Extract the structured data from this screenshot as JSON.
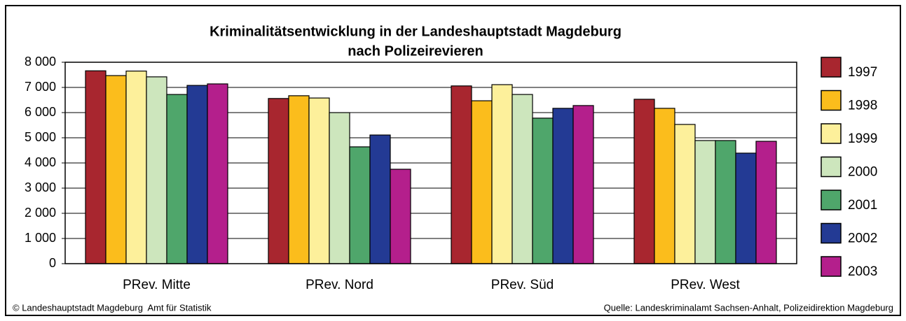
{
  "chart_data": {
    "type": "bar",
    "title": "Kriminalitätsentwicklung in der Landeshauptstadt Magdeburg",
    "subtitle": "nach Polizeirevieren",
    "categories": [
      "PRev. Mitte",
      "PRev. Nord",
      "PRev. Süd",
      "PRev. West"
    ],
    "series": [
      {
        "name": "1997",
        "color": "#a8262f",
        "values": [
          7660,
          6560,
          7060,
          6530
        ]
      },
      {
        "name": "1998",
        "color": "#fbbd1c",
        "values": [
          7470,
          6670,
          6470,
          6170
        ]
      },
      {
        "name": "1999",
        "color": "#fdf09b",
        "values": [
          7650,
          6580,
          7110,
          5530
        ]
      },
      {
        "name": "2000",
        "color": "#cde6bd",
        "values": [
          7420,
          6000,
          6720,
          4890
        ]
      },
      {
        "name": "2001",
        "color": "#4fa66b",
        "values": [
          6720,
          4640,
          5780,
          4890
        ]
      },
      {
        "name": "2002",
        "color": "#233a94",
        "values": [
          7080,
          5110,
          6170,
          4390
        ]
      },
      {
        "name": "2003",
        "color": "#b41f8c",
        "values": [
          7140,
          3750,
          6280,
          4860
        ]
      }
    ],
    "ylim": [
      0,
      8000
    ],
    "yticks": [
      0,
      {
        "value": 1000,
        "label": "1 000"
      },
      {
        "value": 2000,
        "label": "2 000"
      },
      {
        "value": 3000,
        "label": "3 000"
      },
      {
        "value": 4000,
        "label": "4 000"
      },
      {
        "value": 5000,
        "label": "5 000"
      },
      {
        "value": 6000,
        "label": "6 000"
      },
      {
        "value": 7000,
        "label": "7 000"
      },
      {
        "value": 8000,
        "label": "8 000"
      }
    ],
    "grid": true,
    "legend": "right",
    "footer_left": "© Landeshauptstadt Magdeburg  Amt für Statistik",
    "footer_right": "Quelle: Landeskriminalamt Sachsen-Anhalt, Polizeidirektion Magdeburg"
  }
}
